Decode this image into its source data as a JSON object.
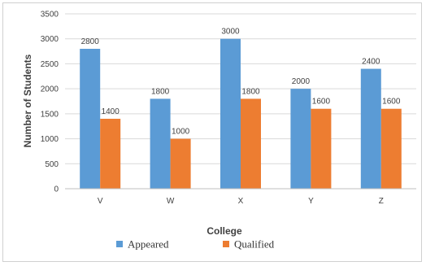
{
  "chart_data": {
    "type": "bar",
    "xlabel": "College",
    "ylabel": "Number of Students",
    "categories": [
      "V",
      "W",
      "X",
      "Y",
      "Z"
    ],
    "ylim": [
      0,
      3500
    ],
    "yticks": [
      0,
      500,
      1000,
      1500,
      2000,
      2500,
      3000,
      3500
    ],
    "grid": true,
    "legend_position": "bottom",
    "series": [
      {
        "name": "Appeared",
        "color": "#5b9bd5",
        "values": [
          2800,
          1800,
          3000,
          2000,
          2400
        ]
      },
      {
        "name": "Qualified",
        "color": "#ed7d31",
        "values": [
          1400,
          1000,
          1800,
          1600,
          1600
        ]
      }
    ]
  }
}
